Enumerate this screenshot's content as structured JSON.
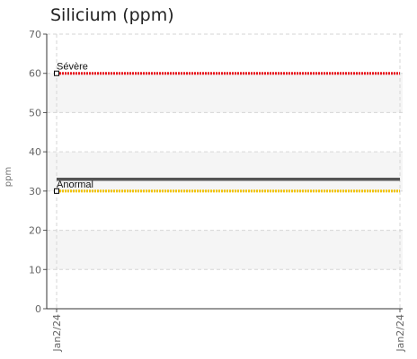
{
  "chart_data": {
    "type": "line",
    "title": "Silicium (ppm)",
    "xlabel": "",
    "ylabel": "ppm",
    "ylim": [
      0,
      70
    ],
    "yticks": [
      0,
      10,
      20,
      30,
      40,
      50,
      60,
      70
    ],
    "xticks": [
      "Jan2/24",
      "Jan2/24"
    ],
    "grid": true,
    "series": [
      {
        "values": [
          33,
          33
        ],
        "color": "#555555"
      }
    ],
    "thresholds": [
      {
        "label": "Sévère",
        "value": 60,
        "color": "#e8141c"
      },
      {
        "label": "Anormal",
        "value": 30,
        "color": "#f2c300"
      }
    ]
  }
}
